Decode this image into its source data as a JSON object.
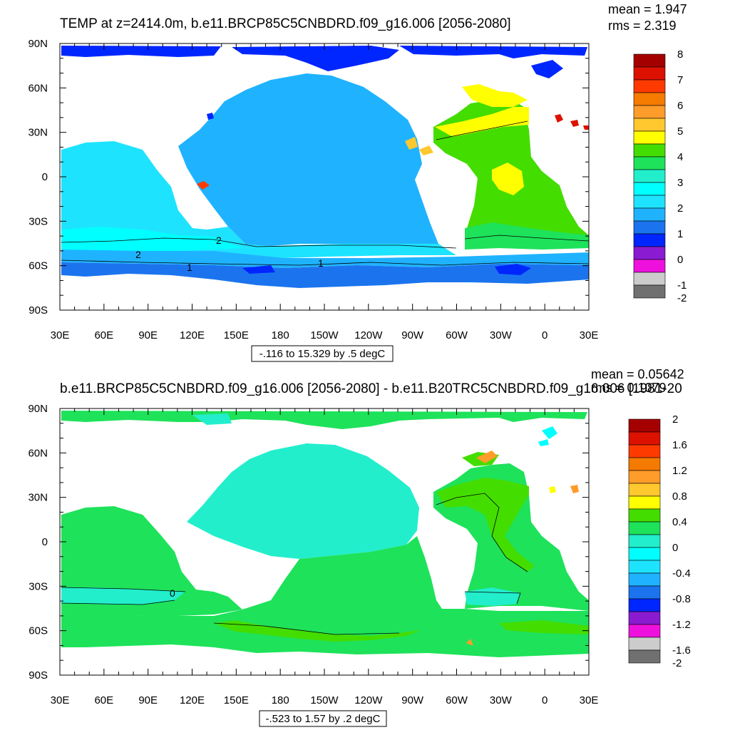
{
  "chart_data": [
    {
      "type": "heatmap",
      "title": "TEMP at z=2414.0m, b.e11.BRCP85C5CNBDRD.f09_g16.006 [2056-2080]",
      "stats": {
        "mean": "mean = 1.947",
        "rms": "rms = 2.319"
      },
      "xticks": [
        "30E",
        "60E",
        "90E",
        "120E",
        "150E",
        "180",
        "150W",
        "120W",
        "90W",
        "60W",
        "30W",
        "0",
        "30E"
      ],
      "yticks": [
        "90N",
        "60N",
        "30N",
        "0",
        "30S",
        "60S",
        "90S"
      ],
      "contour_labels": [
        "2",
        "2",
        "1",
        "1"
      ],
      "colorbar_labels": [
        "8",
        "7",
        "6",
        "5",
        "4",
        "3",
        "2",
        "1",
        "0",
        "-1",
        "-2"
      ],
      "colorbar_colors": [
        "#a50000",
        "#dd1100",
        "#ff3a00",
        "#f57a00",
        "#ff9c2a",
        "#ffc82e",
        "#ffff00",
        "#44dd00",
        "#1ee25a",
        "#22eecc",
        "#00ffff",
        "#1ee3ff",
        "#1fb3ff",
        "#1b74ee",
        "#0026ff",
        "#8a1bd1",
        "#ee11dd",
        "#cccccc",
        "#707070"
      ],
      "range_note": "-.116 to 15.329 by .5 degC"
    },
    {
      "type": "heatmap",
      "title": "b.e11.BRCP85C5CNBDRD.f09_g16.006 [2056-2080] - b.e11.B20TRC5CNBDRD.f09_g16.006 [1981-20",
      "stats": {
        "mean": "mean = 0.05642",
        "rms": "rms = 0.1079"
      },
      "xticks": [
        "30E",
        "60E",
        "90E",
        "120E",
        "150E",
        "180",
        "150W",
        "120W",
        "90W",
        "60W",
        "30W",
        "0",
        "30E"
      ],
      "yticks": [
        "90N",
        "60N",
        "30N",
        "0",
        "30S",
        "60S",
        "90S"
      ],
      "contour_labels": [
        "0"
      ],
      "colorbar_labels": [
        "2",
        "1.6",
        "1.2",
        "0.8",
        "0.4",
        "0",
        "-0.4",
        "-0.8",
        "-1.2",
        "-1.6",
        "-2"
      ],
      "colorbar_colors": [
        "#a50000",
        "#dd1100",
        "#ff3a00",
        "#f57a00",
        "#ff9c2a",
        "#ffc82e",
        "#ffff00",
        "#44dd00",
        "#1ee25a",
        "#22eecc",
        "#00ffff",
        "#1ee3ff",
        "#1fb3ff",
        "#1b74ee",
        "#0026ff",
        "#8a1bd1",
        "#ee11dd",
        "#cccccc",
        "#707070"
      ],
      "range_note": "-.523 to 1.57 by .2 degC"
    }
  ]
}
